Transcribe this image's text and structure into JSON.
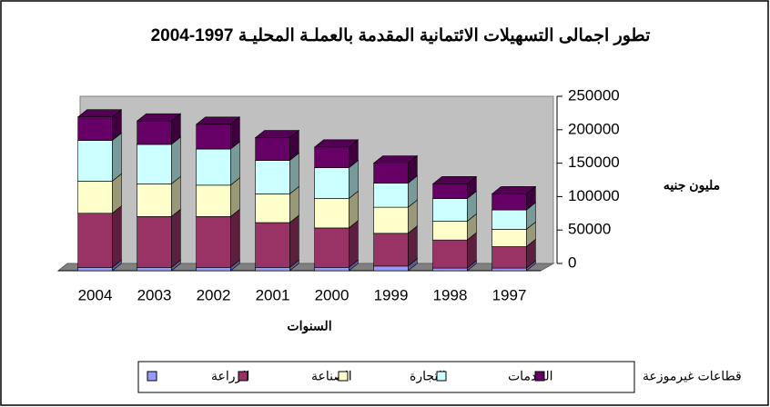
{
  "chart_data": {
    "type": "bar3d_stacked",
    "title": "تطور اجمالى التسهيلات الائتمانية المقدمة بالعملـة المحليـة 1997-2004",
    "y_label": "مليون جنيه",
    "x_label": "السنوات",
    "categories": [
      "2004",
      "2003",
      "2002",
      "2001",
      "2000",
      "1999",
      "1998",
      "1997"
    ],
    "series": [
      {
        "name": "الزراعة",
        "color": "#9999ff",
        "values": [
          5000,
          5000,
          5000,
          5000,
          5000,
          7000,
          4000,
          4000
        ]
      },
      {
        "name": "الصناعة",
        "color": "#993366",
        "values": [
          81000,
          76000,
          76000,
          67000,
          59000,
          49000,
          42000,
          32000
        ]
      },
      {
        "name": "التجارة",
        "color": "#ffffcc",
        "values": [
          48000,
          49000,
          47000,
          43000,
          44000,
          39000,
          28000,
          26000
        ]
      },
      {
        "name": "الخدمات",
        "color": "#ccffff",
        "values": [
          61000,
          59000,
          54000,
          50000,
          46000,
          36000,
          34000,
          29000
        ]
      },
      {
        "name": "قطاعات غيرموزعة",
        "color": "#660066",
        "values": [
          35000,
          35000,
          37000,
          34000,
          31000,
          30000,
          22000,
          24000
        ]
      }
    ],
    "ylim": [
      0,
      250000
    ],
    "yticks": [
      0,
      50000,
      100000,
      150000,
      200000,
      250000
    ],
    "grid": false
  }
}
